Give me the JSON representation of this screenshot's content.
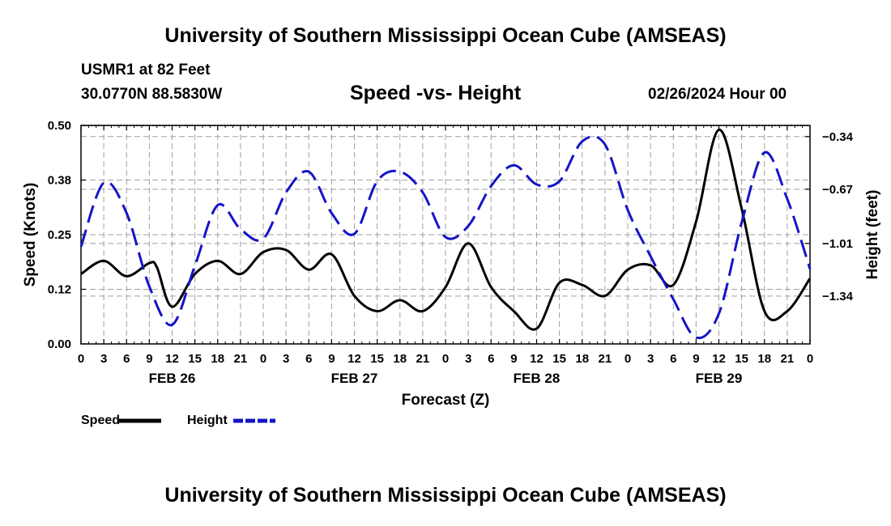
{
  "header": {
    "title": "University of Southern Mississippi Ocean Cube (AMSEAS)",
    "station": "USMR1 at 82 Feet",
    "coordinates": "30.0770N  88.5830W",
    "subtitle": "Speed -vs- Height",
    "timestamp": "02/26/2024 Hour 00"
  },
  "footer": {
    "title": "University of Southern Mississippi Ocean Cube (AMSEAS)"
  },
  "colors": {
    "speed": "#000000",
    "height": "#1414c8",
    "grid": "#a0a0a0"
  },
  "chart_data": {
    "type": "line",
    "title": "Speed -vs- Height",
    "xlabel": "Forecast (Z)",
    "ylabel": "Speed (Knots)",
    "y2label": "Height (feet)",
    "x_tick_labels": [
      "0",
      "3",
      "6",
      "9",
      "12",
      "15",
      "18",
      "21",
      "0",
      "3",
      "6",
      "9",
      "12",
      "15",
      "18",
      "21",
      "0",
      "3",
      "6",
      "9",
      "12",
      "15",
      "18",
      "21",
      "0",
      "3",
      "6",
      "9",
      "12",
      "15",
      "18",
      "21",
      "0"
    ],
    "day_labels": [
      {
        "label": "FEB 26",
        "hour": 12
      },
      {
        "label": "FEB 27",
        "hour": 36
      },
      {
        "label": "FEB 28",
        "hour": 60
      },
      {
        "label": "FEB 29",
        "hour": 84
      }
    ],
    "xlim": [
      0,
      96
    ],
    "ylim": [
      0,
      0.5
    ],
    "y_tick_labels": [
      "0.00",
      "0.12",
      "0.25",
      "0.38",
      "0.50"
    ],
    "y2lim": [
      -1.64,
      -0.27
    ],
    "y2_ticks": [
      -0.34,
      -0.67,
      -1.01,
      -1.34
    ],
    "y2_tick_labels": [
      "−0.34",
      "−0.67",
      "−1.01",
      "−1.34"
    ],
    "series": [
      {
        "name": "Speed",
        "axis": "left",
        "dash": "solid",
        "x": [
          0,
          3,
          6,
          9,
          10,
          12,
          15,
          18,
          21,
          24,
          27,
          30,
          33,
          36,
          39,
          42,
          45,
          48,
          51,
          54,
          57,
          60,
          63,
          66,
          69,
          72,
          75,
          78,
          81,
          84,
          87,
          90,
          93,
          96
        ],
        "y": [
          0.16,
          0.19,
          0.155,
          0.185,
          0.175,
          0.085,
          0.16,
          0.19,
          0.16,
          0.21,
          0.215,
          0.17,
          0.205,
          0.11,
          0.075,
          0.1,
          0.075,
          0.13,
          0.23,
          0.13,
          0.075,
          0.035,
          0.14,
          0.135,
          0.11,
          0.17,
          0.18,
          0.135,
          0.28,
          0.49,
          0.31,
          0.075,
          0.075,
          0.15
        ]
      },
      {
        "name": "Height",
        "axis": "right",
        "dash": "dashed",
        "x": [
          0,
          3,
          6,
          9,
          12,
          15,
          18,
          21,
          24,
          27,
          30,
          33,
          36,
          39,
          42,
          45,
          48,
          51,
          54,
          57,
          60,
          63,
          66,
          69,
          72,
          75,
          78,
          81,
          84,
          87,
          90,
          93,
          96
        ],
        "y": [
          -1.03,
          -0.63,
          -0.82,
          -1.28,
          -1.52,
          -1.15,
          -0.77,
          -0.92,
          -0.98,
          -0.69,
          -0.56,
          -0.82,
          -0.95,
          -0.62,
          -0.56,
          -0.69,
          -0.97,
          -0.9,
          -0.65,
          -0.52,
          -0.64,
          -0.62,
          -0.37,
          -0.39,
          -0.8,
          -1.09,
          -1.36,
          -1.6,
          -1.45,
          -0.88,
          -0.44,
          -0.73,
          -1.17
        ]
      }
    ],
    "legend": [
      {
        "label": "Speed",
        "dash": "solid"
      },
      {
        "label": "Height",
        "dash": "dashed"
      }
    ],
    "legend_position": "bottom-left",
    "grid": true
  }
}
